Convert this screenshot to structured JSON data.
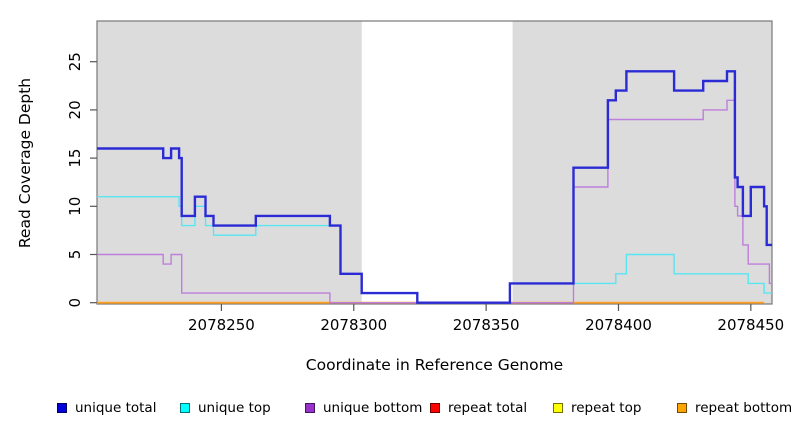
{
  "figure": {
    "xlabel": "Coordinate in Reference Genome",
    "ylabel": "Read Coverage Depth"
  },
  "legend": {
    "items": [
      {
        "label": "unique total",
        "color": "#0000DD"
      },
      {
        "label": "unique top",
        "color": "#00FFFF"
      },
      {
        "label": "unique bottom",
        "color": "#9932CC"
      },
      {
        "label": "repeat total",
        "color": "#FF0000"
      },
      {
        "label": "repeat top",
        "color": "#FFFF00"
      },
      {
        "label": "repeat bottom",
        "color": "#FFA500"
      }
    ]
  },
  "chart_data": {
    "type": "line",
    "step": "post",
    "title": "",
    "xlabel": "Coordinate in Reference Genome",
    "ylabel": "Read Coverage Depth",
    "xlim": [
      2078203,
      2078458
    ],
    "ylim": [
      0,
      29
    ],
    "xticks": [
      2078250,
      2078300,
      2078350,
      2078400,
      2078450
    ],
    "yticks": [
      0,
      5,
      10,
      15,
      20,
      25
    ],
    "grid": false,
    "legend_position": "bottom",
    "plot_background": "#FFFFFF",
    "box_color": "#777777",
    "background_regions": [
      {
        "from": 2078203,
        "to": 2078303,
        "color": "#DCDCDC"
      },
      {
        "from": 2078360,
        "to": 2078458,
        "color": "#DCDCDC"
      }
    ],
    "draw_order": [
      "repeat top",
      "repeat bottom",
      "repeat total",
      "unique bottom",
      "unique top",
      "unique total"
    ],
    "series": [
      {
        "name": "unique total",
        "line_color": "#2B2BD5",
        "line_width": 2.4,
        "end": 2078458,
        "points": [
          [
            2078203,
            16
          ],
          [
            2078228,
            15
          ],
          [
            2078231,
            16
          ],
          [
            2078234,
            15
          ],
          [
            2078235,
            9
          ],
          [
            2078240,
            11
          ],
          [
            2078244,
            9
          ],
          [
            2078247,
            8
          ],
          [
            2078263,
            9
          ],
          [
            2078291,
            8
          ],
          [
            2078295,
            3
          ],
          [
            2078303,
            1
          ],
          [
            2078324,
            0
          ],
          [
            2078359,
            2
          ],
          [
            2078383,
            14
          ],
          [
            2078396,
            21
          ],
          [
            2078399,
            22
          ],
          [
            2078403,
            24
          ],
          [
            2078421,
            22
          ],
          [
            2078432,
            23
          ],
          [
            2078441,
            24
          ],
          [
            2078444,
            13
          ],
          [
            2078445,
            12
          ],
          [
            2078447,
            9
          ],
          [
            2078450,
            12
          ],
          [
            2078455,
            10
          ],
          [
            2078456,
            6
          ]
        ]
      },
      {
        "name": "unique top",
        "line_color": "#58E5F2",
        "line_width": 1.4,
        "end": 2078458,
        "points": [
          [
            2078203,
            11
          ],
          [
            2078234,
            10
          ],
          [
            2078235,
            8
          ],
          [
            2078240,
            10
          ],
          [
            2078244,
            8
          ],
          [
            2078247,
            7
          ],
          [
            2078263,
            8
          ],
          [
            2078295,
            3
          ],
          [
            2078303,
            1
          ],
          [
            2078324,
            0
          ],
          [
            2078359,
            2
          ],
          [
            2078399,
            3
          ],
          [
            2078403,
            5
          ],
          [
            2078421,
            3
          ],
          [
            2078449,
            2
          ],
          [
            2078455,
            1
          ]
        ]
      },
      {
        "name": "unique bottom",
        "line_color": "#BE7EDD",
        "line_width": 1.4,
        "end": 2078458,
        "points": [
          [
            2078203,
            5
          ],
          [
            2078228,
            4
          ],
          [
            2078231,
            5
          ],
          [
            2078235,
            1
          ],
          [
            2078291,
            0
          ],
          [
            2078383,
            12
          ],
          [
            2078396,
            19
          ],
          [
            2078432,
            20
          ],
          [
            2078441,
            21
          ],
          [
            2078444,
            10
          ],
          [
            2078445,
            9
          ],
          [
            2078447,
            6
          ],
          [
            2078449,
            4
          ],
          [
            2078457,
            2
          ]
        ]
      },
      {
        "name": "repeat total",
        "line_color": "#D84A6A",
        "line_width": 1.4,
        "end": 2078383,
        "points": [
          [
            2078291,
            0
          ]
        ]
      },
      {
        "name": "repeat top",
        "line_color": "#F5E800",
        "line_width": 1.4,
        "end": 2078455,
        "points": [
          [
            2078203,
            0
          ]
        ]
      },
      {
        "name": "repeat bottom",
        "line_color": "#FF9F22",
        "line_width": 1.8,
        "end": 2078455,
        "points": [
          [
            2078203,
            0
          ]
        ]
      }
    ]
  }
}
